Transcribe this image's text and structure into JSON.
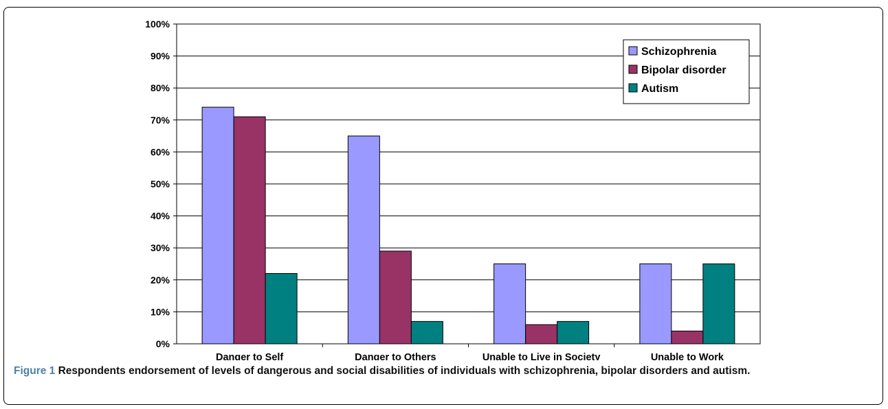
{
  "chart_data": {
    "type": "bar",
    "categories": [
      "Danger to Self",
      "Danger to Others",
      "Unable to Live in Society",
      "Unable to Work"
    ],
    "series": [
      {
        "name": "Schizophrenia",
        "values": [
          74,
          65,
          25,
          25
        ],
        "color": "#9999ff"
      },
      {
        "name": "Bipolar disorder",
        "values": [
          71,
          29,
          6,
          4
        ],
        "color": "#993366"
      },
      {
        "name": "Autism",
        "values": [
          22,
          7,
          7,
          25
        ],
        "color": "#008080"
      }
    ],
    "ylim": [
      0,
      100
    ],
    "yticks": [
      0,
      10,
      20,
      30,
      40,
      50,
      60,
      70,
      80,
      90,
      100
    ],
    "ytick_suffix": "%",
    "grid": true,
    "legend": "top-right"
  },
  "caption": {
    "figure_label": "Figure 1",
    "text": "Respondents endorsement of levels of dangerous and social disabilities of individuals with schizophrenia, bipolar disorders and autism."
  }
}
